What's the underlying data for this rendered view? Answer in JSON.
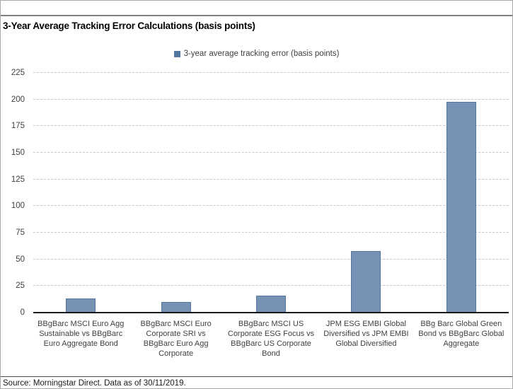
{
  "title": "3-Year Average Tracking Error Calculations (basis points)",
  "legend": {
    "label": "3-year average tracking error (basis points)",
    "swatch_color": "#54779f"
  },
  "footer": {
    "source_text": "Source: Morningstar Direct. Data as of 30/11/2019."
  },
  "colors": {
    "bar_fill": "#7591b4",
    "bar_border": "#53779f",
    "gridline": "#c9c9c9",
    "axis_line": "#1a1a1a"
  },
  "chart_data": {
    "type": "bar",
    "title": "3-Year Average Tracking Error Calculations (basis points)",
    "categories": [
      "BBgBarc MSCI Euro Agg Sustainable vs BBgBarc Euro Aggregate Bond",
      "BBgBarc MSCI Euro Corporate SRI vs BBgBarc Euro Agg Corporate",
      "BBgBarc MSCI US Corporate ESG Focus vs BBgBarc US Corporate Bond",
      "JPM ESG EMBI Global Diversified vs JPM EMBI Global Diversified",
      "BBg Barc Global Green Bond vs BBgBarc Global Aggregate"
    ],
    "values": [
      13,
      10,
      16,
      58,
      198
    ],
    "series": [
      {
        "name": "3-year average tracking error (basis points)",
        "values": [
          13,
          10,
          16,
          58,
          198
        ]
      }
    ],
    "xlabel": "",
    "ylabel": "",
    "ylim": [
      0,
      225
    ],
    "yticks": [
      0,
      25,
      50,
      75,
      100,
      125,
      150,
      175,
      200,
      225
    ],
    "grid": "horizontal-dashed",
    "legend_position": "top-center"
  }
}
